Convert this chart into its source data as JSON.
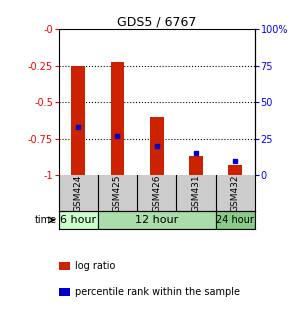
{
  "title": "GDS5 / 6767",
  "samples": [
    "GSM424",
    "GSM425",
    "GSM426",
    "GSM431",
    "GSM432"
  ],
  "log_ratio_tops": [
    -0.25,
    -0.22,
    -0.6,
    -0.87,
    -0.93
  ],
  "log_ratio_bottoms": [
    -1.0,
    -1.0,
    -1.0,
    -1.0,
    -1.0
  ],
  "percentile_ranks_pct": [
    33,
    27,
    20,
    15,
    10
  ],
  "time_groups": {
    "6 hour": [
      0
    ],
    "12 hour": [
      1,
      2,
      3
    ],
    "24 hour": [
      4
    ]
  },
  "time_colors": {
    "6 hour": "#ccffcc",
    "12 hour": "#aaddaa",
    "24 hour": "#88cc88"
  },
  "bar_color": "#cc2200",
  "percentile_color": "#0000cc",
  "ylim_left": [
    -1.0,
    0.0
  ],
  "ylim_right": [
    0,
    100
  ],
  "yticks_left": [
    0.0,
    -0.25,
    -0.5,
    -0.75,
    -1.0
  ],
  "ytick_labels_left": [
    "-0",
    "-0.25",
    "-0.5",
    "-0.75",
    "-1"
  ],
  "yticks_right": [
    0,
    25,
    50,
    75,
    100
  ],
  "ytick_labels_right": [
    "0",
    "25",
    "50",
    "75",
    "100%"
  ],
  "background_color": "#ffffff",
  "header_bg": "#cccccc",
  "bar_width": 0.35
}
